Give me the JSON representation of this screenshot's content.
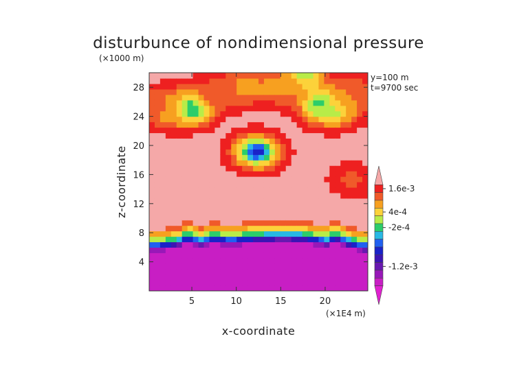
{
  "chart_data": {
    "type": "heatmap",
    "title": "disturbunce of nondimensional pressure",
    "xlabel": "x-coordinate",
    "ylabel": "z-coordinate",
    "x_unit": "(×1E4 m)",
    "y_unit": "(×1000 m)",
    "annotations": [
      "y=100 m",
      "t=9700 sec"
    ],
    "xlim": [
      0.2,
      24.8
    ],
    "ylim": [
      0,
      30
    ],
    "x_ticks": [
      5,
      10,
      15,
      20
    ],
    "y_ticks": [
      4,
      8,
      12,
      16,
      20,
      24,
      28
    ],
    "colorbar": {
      "labels": [
        "1.6e-3",
        "4e-4",
        "-2e-4",
        "-1.2e-3"
      ],
      "label_values": [
        0.0016,
        0.0004,
        -0.0002,
        -0.0012
      ],
      "levels": [
        {
          "value": 0.002,
          "color": "#f5a8a8"
        },
        {
          "value": 0.0016,
          "color": "#ee2020"
        },
        {
          "value": 0.0012,
          "color": "#f05a2a"
        },
        {
          "value": 0.0008,
          "color": "#f7a020"
        },
        {
          "value": 0.0004,
          "color": "#fcd23a"
        },
        {
          "value": 0.0001,
          "color": "#b8ec48"
        },
        {
          "value": -0.0002,
          "color": "#2ccd6a"
        },
        {
          "value": -0.0004,
          "color": "#28b8e4"
        },
        {
          "value": -0.0006,
          "color": "#2060f0"
        },
        {
          "value": -0.0008,
          "color": "#1a22c8"
        },
        {
          "value": -0.001,
          "color": "#3c14b4"
        },
        {
          "value": -0.0012,
          "color": "#6818b0"
        },
        {
          "value": -0.0014,
          "color": "#9818b8"
        },
        {
          "value": -0.0016,
          "color": "#c81ec4"
        },
        {
          "value": -0.002,
          "color": "#e020d0"
        }
      ]
    },
    "background_value": 0.002,
    "low_layer_top_z": [
      [
        0.2,
        8.4
      ],
      [
        2,
        8.6
      ],
      [
        3.5,
        8.9
      ],
      [
        4.5,
        9.6
      ],
      [
        5,
        9.4
      ],
      [
        6,
        9.0
      ],
      [
        7.5,
        9.5
      ],
      [
        9,
        9.2
      ],
      [
        11,
        9.4
      ],
      [
        13,
        9.6
      ],
      [
        15,
        9.8
      ],
      [
        17.5,
        9.6
      ],
      [
        19.5,
        9.2
      ],
      [
        20.5,
        9.0
      ],
      [
        21,
        9.8
      ],
      [
        22,
        9.2
      ],
      [
        23.5,
        8.6
      ],
      [
        24.8,
        8.3
      ]
    ],
    "low_layer_bottom_value": -0.0017,
    "features": [
      {
        "x": 4.9,
        "z": 25.3,
        "value": -0.001
      },
      {
        "x": 2.3,
        "z": 25.0,
        "value": 0.0004
      },
      {
        "x": 12.3,
        "z": 19.2,
        "value": -0.0009
      },
      {
        "x": 17.5,
        "z": 29.6,
        "value": 0.0
      },
      {
        "x": 19.8,
        "z": 25.6,
        "value": -0.0006
      },
      {
        "x": 21.2,
        "z": 25.0,
        "value": 0.0001
      },
      {
        "x": 10.8,
        "z": 28.0,
        "value": 0.0006
      },
      {
        "x": 8.0,
        "z": 27.5,
        "value": 0.0012
      },
      {
        "x": 14.6,
        "z": 28.0,
        "value": 0.0008
      },
      {
        "x": 23.5,
        "z": 27.2,
        "value": 0.001
      },
      {
        "x": 0.8,
        "z": 25.5,
        "value": 0.0012
      },
      {
        "x": 23.0,
        "z": 15.3,
        "value": 0.0013
      }
    ]
  }
}
